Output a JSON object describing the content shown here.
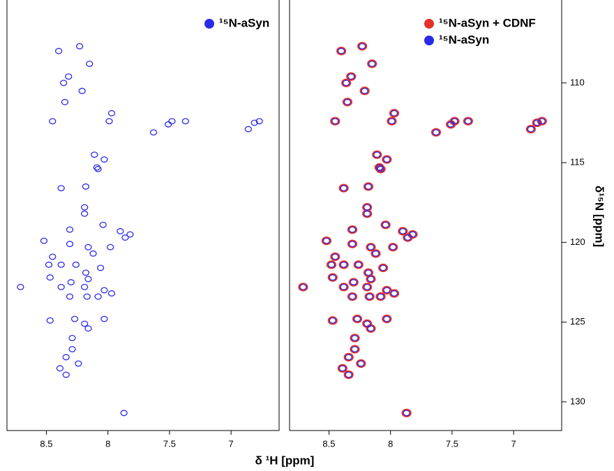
{
  "chart_data": [
    {
      "type": "scatter",
      "xlabel": "δ ¹H [ppm]",
      "legend": "upper right",
      "xlim": [
        8.82,
        6.61
      ],
      "ylim": [
        104.8,
        131.8
      ],
      "xticks": [
        8.5,
        8.0,
        7.5,
        7.0
      ],
      "series": [
        {
          "name": "¹⁵N-aSyn",
          "color": "#2a2ae8",
          "x": [
            8.4,
            8.23,
            8.15,
            8.36,
            8.32,
            8.21,
            8.35,
            8.45,
            7.99,
            7.97,
            7.63,
            7.51,
            7.48,
            7.37,
            6.86,
            6.81,
            6.77,
            8.11,
            8.03,
            8.09,
            8.08,
            8.18,
            8.38,
            8.19,
            8.19,
            8.31,
            8.04,
            7.9,
            7.86,
            7.82,
            8.52,
            8.45,
            8.31,
            8.16,
            8.12,
            7.98,
            8.48,
            8.38,
            8.26,
            8.18,
            8.16,
            8.06,
            8.3,
            8.19,
            8.71,
            8.47,
            8.38,
            8.03,
            7.97,
            8.31,
            8.17,
            8.08,
            8.47,
            8.27,
            8.19,
            8.16,
            8.03,
            8.29,
            8.29,
            8.34,
            8.24,
            8.39,
            8.34,
            7.87
          ],
          "values": [
            108.0,
            107.7,
            108.8,
            110.0,
            109.6,
            110.5,
            111.2,
            112.4,
            112.4,
            111.9,
            113.1,
            112.6,
            112.4,
            112.4,
            112.9,
            112.5,
            112.4,
            114.5,
            114.8,
            115.3,
            115.4,
            116.5,
            116.6,
            117.8,
            118.2,
            119.2,
            118.9,
            119.3,
            119.7,
            119.5,
            119.9,
            120.9,
            120.1,
            120.3,
            120.7,
            120.3,
            121.4,
            121.4,
            121.4,
            121.9,
            122.3,
            121.6,
            122.5,
            122.8,
            122.8,
            122.2,
            122.8,
            123.0,
            123.2,
            123.4,
            123.4,
            123.4,
            124.9,
            124.8,
            125.1,
            125.4,
            124.8,
            126.0,
            126.7,
            127.2,
            127.6,
            127.9,
            128.3,
            130.7
          ]
        }
      ]
    },
    {
      "type": "scatter",
      "ylabel": "δ¹⁵N [ppm]",
      "legend": "upper right",
      "xlim": [
        8.82,
        6.61
      ],
      "ylim": [
        104.8,
        131.8
      ],
      "xticks": [
        8.5,
        8.0,
        7.5,
        7.0
      ],
      "yticks": [
        110,
        115,
        120,
        125,
        130
      ],
      "series": [
        {
          "name": "¹⁵N-aSyn + CDNF",
          "color": "#e8302a",
          "x": [
            8.4,
            8.23,
            8.15,
            8.36,
            8.32,
            8.21,
            8.35,
            8.45,
            7.99,
            7.97,
            7.63,
            7.51,
            7.48,
            7.37,
            6.86,
            6.81,
            6.77,
            8.11,
            8.03,
            8.09,
            8.08,
            8.18,
            8.38,
            8.19,
            8.19,
            8.31,
            8.04,
            7.9,
            7.86,
            7.82,
            8.52,
            8.45,
            8.31,
            8.16,
            8.12,
            7.98,
            8.48,
            8.38,
            8.26,
            8.18,
            8.16,
            8.06,
            8.3,
            8.19,
            8.71,
            8.47,
            8.38,
            8.03,
            7.97,
            8.31,
            8.17,
            8.08,
            8.47,
            8.27,
            8.19,
            8.16,
            8.03,
            8.29,
            8.29,
            8.34,
            8.24,
            8.39,
            8.34,
            7.87
          ],
          "values": [
            108.0,
            107.7,
            108.8,
            110.0,
            109.6,
            110.5,
            111.2,
            112.4,
            112.4,
            111.9,
            113.1,
            112.6,
            112.4,
            112.4,
            112.9,
            112.5,
            112.4,
            114.5,
            114.8,
            115.3,
            115.4,
            116.5,
            116.6,
            117.8,
            118.2,
            119.2,
            118.9,
            119.3,
            119.7,
            119.5,
            119.9,
            120.9,
            120.1,
            120.3,
            120.7,
            120.3,
            121.4,
            121.4,
            121.4,
            121.9,
            122.3,
            121.6,
            122.5,
            122.8,
            122.8,
            122.2,
            122.8,
            123.0,
            123.2,
            123.4,
            123.4,
            123.4,
            124.9,
            124.8,
            125.1,
            125.4,
            124.8,
            126.0,
            126.7,
            127.2,
            127.6,
            127.9,
            128.3,
            130.7
          ]
        },
        {
          "name": "¹⁵N-aSyn",
          "color": "#2a2ae8",
          "x": [
            8.4,
            8.23,
            8.15,
            8.36,
            8.32,
            8.21,
            8.35,
            8.45,
            7.99,
            7.97,
            7.63,
            7.51,
            7.48,
            7.37,
            6.86,
            6.81,
            6.77,
            8.11,
            8.03,
            8.09,
            8.08,
            8.18,
            8.38,
            8.19,
            8.19,
            8.31,
            8.04,
            7.9,
            7.86,
            7.82,
            8.52,
            8.45,
            8.31,
            8.16,
            8.12,
            7.98,
            8.48,
            8.38,
            8.26,
            8.18,
            8.16,
            8.06,
            8.3,
            8.19,
            8.71,
            8.47,
            8.38,
            8.03,
            7.97,
            8.31,
            8.17,
            8.08,
            8.47,
            8.27,
            8.19,
            8.16,
            8.03,
            8.29,
            8.29,
            8.34,
            8.24,
            8.39,
            8.34,
            7.87
          ],
          "values": [
            108.0,
            107.7,
            108.8,
            110.0,
            109.6,
            110.5,
            111.2,
            112.4,
            112.4,
            111.9,
            113.1,
            112.6,
            112.4,
            112.4,
            112.9,
            112.5,
            112.4,
            114.5,
            114.8,
            115.3,
            115.4,
            116.5,
            116.6,
            117.8,
            118.2,
            119.2,
            118.9,
            119.3,
            119.7,
            119.5,
            119.9,
            120.9,
            120.1,
            120.3,
            120.7,
            120.3,
            121.4,
            121.4,
            121.4,
            121.9,
            122.3,
            121.6,
            122.5,
            122.8,
            122.8,
            122.2,
            122.8,
            123.0,
            123.2,
            123.4,
            123.4,
            123.4,
            124.9,
            124.8,
            125.1,
            125.4,
            124.8,
            126.0,
            126.7,
            127.2,
            127.6,
            127.9,
            128.3,
            130.7
          ]
        }
      ]
    }
  ]
}
